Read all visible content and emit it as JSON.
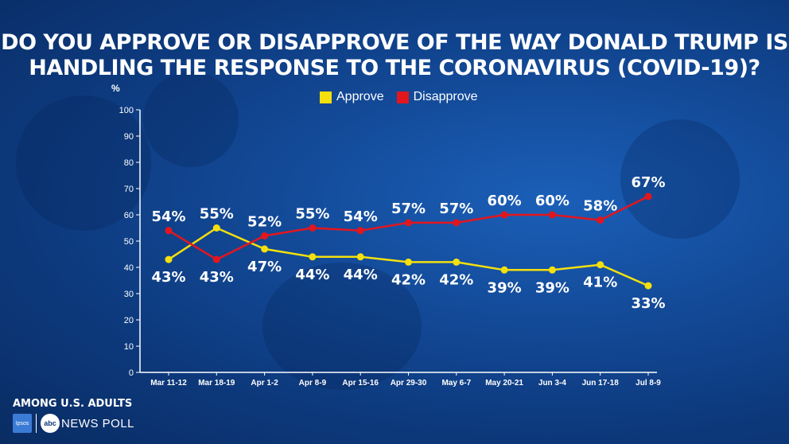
{
  "title_line1": "DO YOU APPROVE OR DISAPPROVE OF THE WAY DONALD TRUMP IS",
  "title_line2": "HANDLING THE RESPONSE TO THE CORONAVIRUS (COVID-19)?",
  "footer": {
    "population": "AMONG U.S. ADULTS",
    "ipsos_logo": "Ipsos",
    "abc_logo": "abc",
    "poll_label": "NEWS POLL"
  },
  "colors": {
    "approve": "#f3e00e",
    "disapprove": "#e3161e",
    "axis": "#ffffff"
  },
  "chart_data": {
    "type": "line",
    "title": "DO YOU APPROVE OR DISAPPROVE OF THE WAY DONALD TRUMP IS HANDLING THE RESPONSE TO THE CORONAVIRUS (COVID-19)?",
    "ylabel": "%",
    "xlabel": "",
    "ylim": [
      0,
      100
    ],
    "yticks": [
      0,
      10,
      20,
      30,
      40,
      50,
      60,
      70,
      80,
      90,
      100
    ],
    "categories": [
      "Mar 11-12",
      "Mar 18-19",
      "Apr 1-2",
      "Apr 8-9",
      "Apr 15-16",
      "Apr 29-30",
      "May 6-7",
      "May 20-21",
      "Jun 3-4",
      "Jun 17-18",
      "Jul 8-9"
    ],
    "legend_position": "top",
    "grid": false,
    "series": [
      {
        "name": "Approve",
        "color": "#f3e00e",
        "values": [
          43,
          55,
          47,
          44,
          44,
          42,
          42,
          39,
          39,
          41,
          33
        ],
        "labels": [
          "43%",
          "55%",
          "47%",
          "44%",
          "44%",
          "42%",
          "42%",
          "39%",
          "39%",
          "41%",
          "33%"
        ]
      },
      {
        "name": "Disapprove",
        "color": "#e3161e",
        "values": [
          54,
          43,
          52,
          55,
          54,
          57,
          57,
          60,
          60,
          58,
          67
        ],
        "labels": [
          "54%",
          "43%",
          "52%",
          "55%",
          "54%",
          "57%",
          "57%",
          "60%",
          "60%",
          "58%",
          "67%"
        ]
      }
    ]
  }
}
